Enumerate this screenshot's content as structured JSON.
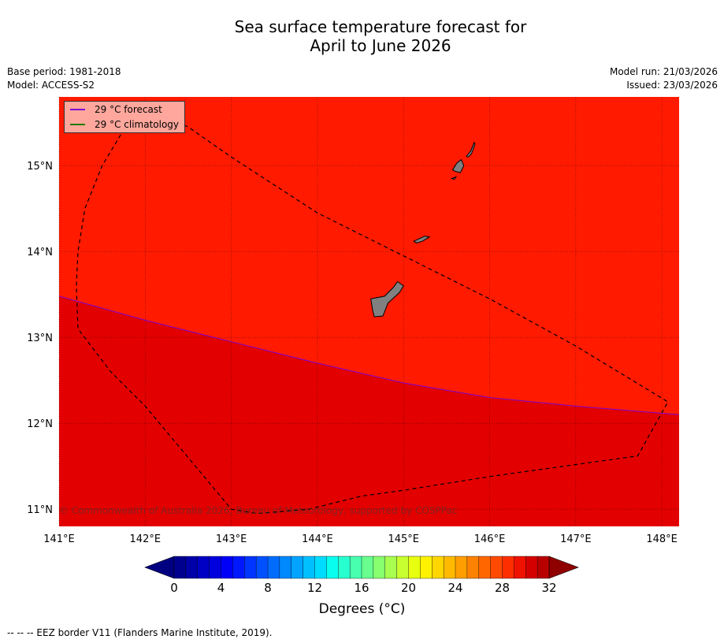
{
  "title_line1": "Sea surface temperature forecast for",
  "title_line2": "April to June 2026",
  "meta": {
    "base_period": "Base period: 1981-2018",
    "model": "Model: ACCESS-S2",
    "model_run": "Model run: 21/03/2026",
    "issued": "Issued: 23/03/2026"
  },
  "map": {
    "lon_range": [
      141.0,
      148.2
    ],
    "lat_range": [
      10.8,
      15.8
    ],
    "lon_ticks": [
      141,
      142,
      143,
      144,
      145,
      146,
      147,
      148
    ],
    "lat_ticks": [
      11,
      12,
      13,
      14,
      15
    ],
    "lon_tick_labels": [
      "141°E",
      "142°E",
      "143°E",
      "144°E",
      "145°E",
      "146°E",
      "147°E",
      "148°E"
    ],
    "lat_tick_labels": [
      "11°N",
      "12°N",
      "13°N",
      "14°N",
      "15°N"
    ],
    "warm_zone_color": "#ff1a00",
    "cool_zone_color": "#e30000",
    "land_color": "#808080",
    "forecast_29c_isotherm": [
      [
        141.0,
        13.48
      ],
      [
        142.0,
        13.2
      ],
      [
        143.0,
        12.95
      ],
      [
        144.0,
        12.7
      ],
      [
        145.0,
        12.47
      ],
      [
        146.0,
        12.3
      ],
      [
        147.0,
        12.2
      ],
      [
        148.2,
        12.1
      ]
    ],
    "eez_border": [
      [
        142.0,
        15.65
      ],
      [
        141.8,
        15.5
      ],
      [
        141.5,
        15.0
      ],
      [
        141.3,
        14.5
      ],
      [
        141.22,
        14.0
      ],
      [
        141.2,
        13.6
      ],
      [
        141.22,
        13.1
      ],
      [
        141.6,
        12.6
      ],
      [
        142.0,
        12.2
      ],
      [
        142.5,
        11.6
      ],
      [
        143.0,
        11.0
      ],
      [
        143.3,
        10.95
      ],
      [
        143.9,
        11.0
      ],
      [
        144.5,
        11.15
      ],
      [
        145.0,
        11.22
      ],
      [
        146.0,
        11.38
      ],
      [
        147.0,
        11.52
      ],
      [
        147.72,
        11.62
      ],
      [
        148.07,
        12.25
      ],
      [
        147.0,
        12.9
      ],
      [
        146.0,
        13.45
      ],
      [
        145.0,
        13.95
      ],
      [
        144.0,
        14.45
      ],
      [
        143.0,
        15.1
      ],
      [
        142.5,
        15.45
      ],
      [
        142.1,
        15.62
      ],
      [
        142.0,
        15.65
      ]
    ],
    "islands": [
      [
        [
          144.62,
          13.45
        ],
        [
          144.78,
          13.48
        ],
        [
          144.88,
          13.58
        ],
        [
          144.93,
          13.65
        ],
        [
          145.0,
          13.6
        ],
        [
          144.95,
          13.52
        ],
        [
          144.82,
          13.4
        ],
        [
          144.76,
          13.25
        ],
        [
          144.66,
          13.24
        ],
        [
          144.64,
          13.32
        ]
      ],
      [
        [
          145.12,
          14.12
        ],
        [
          145.25,
          14.18
        ],
        [
          145.3,
          14.17
        ],
        [
          145.22,
          14.12
        ],
        [
          145.15,
          14.1
        ]
      ],
      [
        [
          145.57,
          14.95
        ],
        [
          145.62,
          15.03
        ],
        [
          145.67,
          15.07
        ],
        [
          145.7,
          15.0
        ],
        [
          145.66,
          14.92
        ],
        [
          145.61,
          14.93
        ]
      ],
      [
        [
          145.73,
          15.11
        ],
        [
          145.78,
          15.17
        ],
        [
          145.82,
          15.27
        ],
        [
          145.83,
          15.25
        ],
        [
          145.79,
          15.14
        ],
        [
          145.75,
          15.1
        ]
      ],
      [
        [
          145.56,
          14.85
        ],
        [
          145.61,
          14.87
        ],
        [
          145.59,
          14.84
        ]
      ]
    ]
  },
  "legend": {
    "forecast_label": "29 °C  forecast",
    "forecast_color": "#7b00d4",
    "climatology_label": "29 °C  climatology",
    "climatology_color": "#1f7a00"
  },
  "copyright": "© Commonwealth of Australia 2026, Bureau of Meteorology, supported by COSPPac",
  "colorbar": {
    "min": 0,
    "max": 32,
    "step": 1,
    "tick_values": [
      0,
      4,
      8,
      12,
      16,
      20,
      24,
      28,
      32
    ],
    "tick_labels": [
      "0",
      "4",
      "8",
      "12",
      "16",
      "20",
      "24",
      "28",
      "32"
    ],
    "label": "Degrees (°C)",
    "colors": [
      "#00008f",
      "#0000a8",
      "#0000c4",
      "#0000de",
      "#0000f8",
      "#0018ff",
      "#0034ff",
      "#0050ff",
      "#006cff",
      "#0088ff",
      "#00a4ff",
      "#00c0ff",
      "#00dcff",
      "#08ffef",
      "#28ffcf",
      "#48ffaf",
      "#68ff8f",
      "#88ff6f",
      "#a8ff4f",
      "#c8ff2f",
      "#e8ff0f",
      "#fff200",
      "#ffd600",
      "#ffba00",
      "#ff9e00",
      "#ff8200",
      "#ff6600",
      "#ff4a00",
      "#ff2e00",
      "#f01200",
      "#d40000",
      "#b80000"
    ],
    "under_color": "#000080",
    "over_color": "#8f0000"
  },
  "footnote": "--  --  -- EEZ border V11 (Flanders Marine Institute, 2019)."
}
